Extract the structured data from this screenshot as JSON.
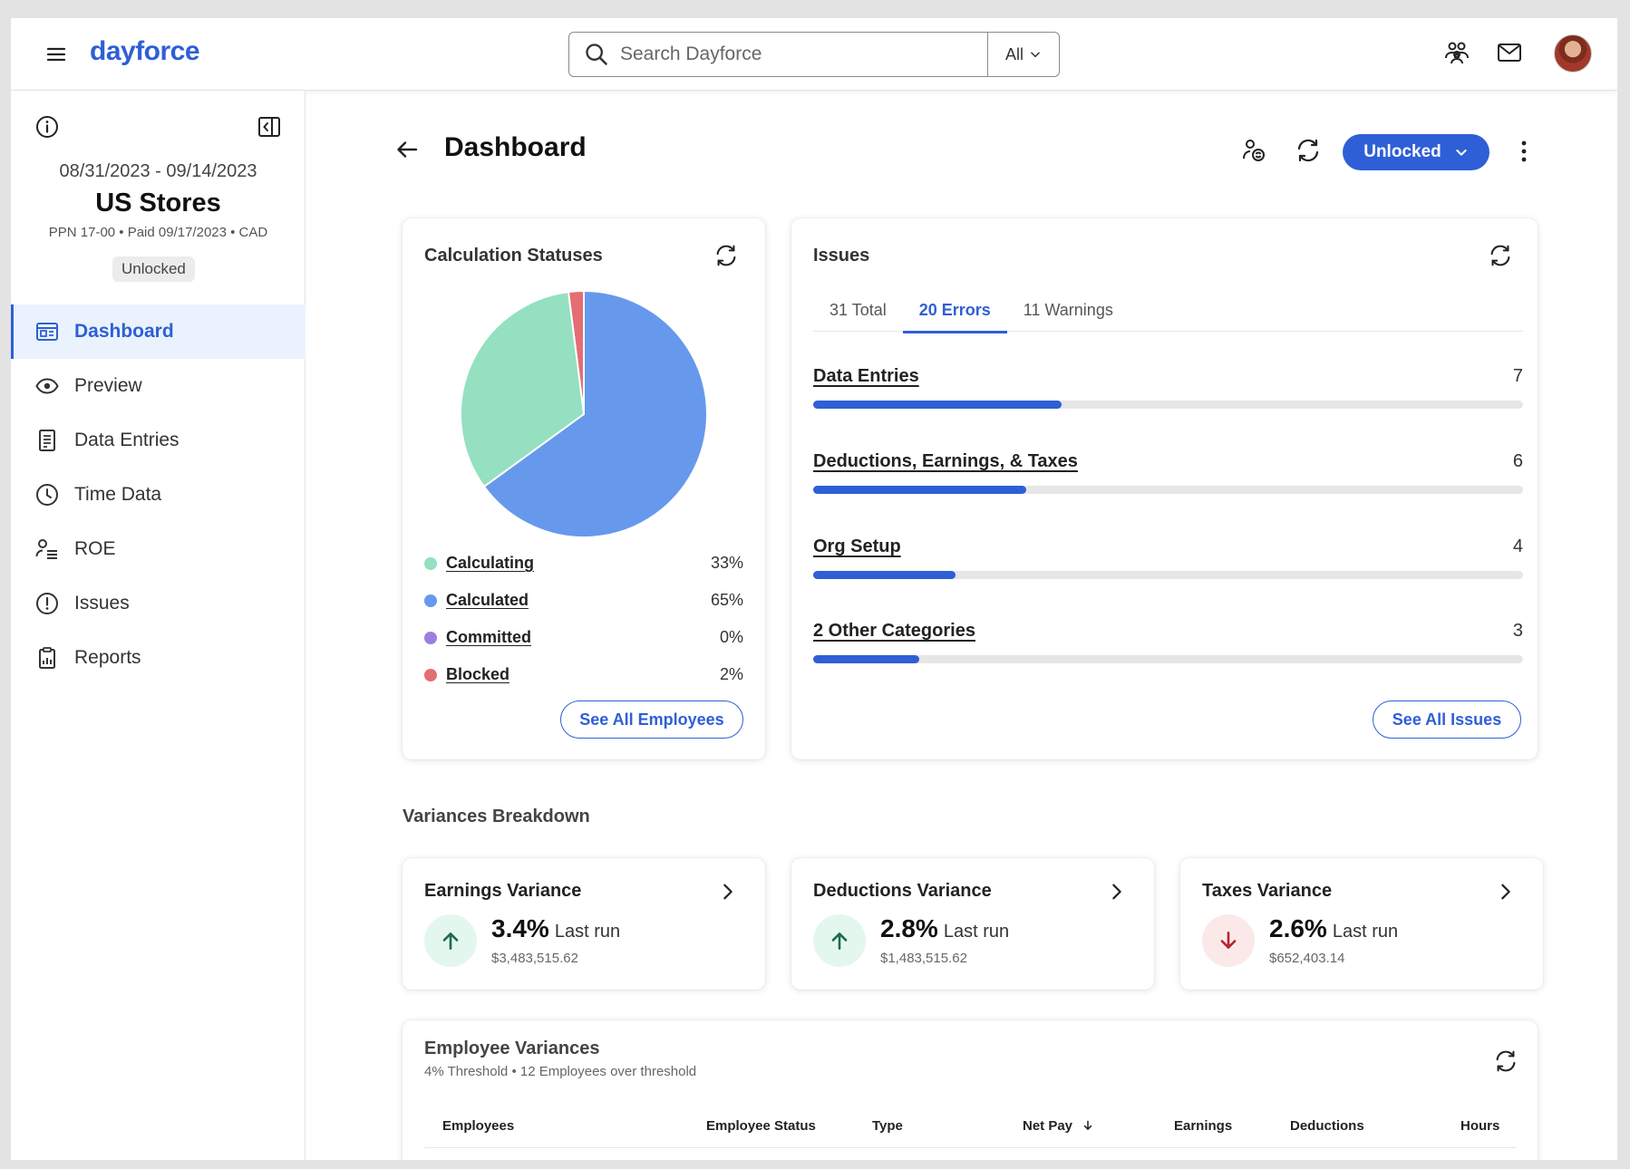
{
  "app": {
    "logo": "dayforce"
  },
  "search": {
    "placeholder": "Search Dayforce",
    "scope": "All"
  },
  "period": {
    "dates": "08/31/2023 - 09/14/2023",
    "store": "US Stores",
    "meta": "PPN 17-00 • Paid 09/17/2023 • CAD",
    "status": "Unlocked"
  },
  "nav": [
    {
      "label": "Dashboard",
      "icon": "dashboard-icon",
      "active": true
    },
    {
      "label": "Preview",
      "icon": "eye-icon"
    },
    {
      "label": "Data Entries",
      "icon": "document-icon"
    },
    {
      "label": "Time Data",
      "icon": "clock-icon"
    },
    {
      "label": "ROE",
      "icon": "person-list-icon"
    },
    {
      "label": "Issues",
      "icon": "alert-circle-icon"
    },
    {
      "label": "Reports",
      "icon": "report-icon"
    }
  ],
  "page": {
    "title": "Dashboard",
    "lock_button": "Unlocked"
  },
  "calc_statuses": {
    "title": "Calculation Statuses",
    "legend": [
      {
        "label": "Calculating",
        "value": "33%",
        "color": "#94e0c0"
      },
      {
        "label": "Calculated",
        "value": "65%",
        "color": "#6699ec"
      },
      {
        "label": "Committed",
        "value": "0%",
        "color": "#9b7fe0"
      },
      {
        "label": "Blocked",
        "value": "2%",
        "color": "#e56d74"
      }
    ],
    "button": "See All Employees"
  },
  "chart_data": {
    "type": "pie",
    "title": "Calculation Statuses",
    "categories": [
      "Calculating",
      "Calculated",
      "Committed",
      "Blocked"
    ],
    "values": [
      33,
      65,
      0,
      2
    ],
    "colors": [
      "#94e0c0",
      "#6699ec",
      "#9b7fe0",
      "#e56d74"
    ]
  },
  "issues": {
    "title": "Issues",
    "tabs": [
      {
        "label": "31 Total"
      },
      {
        "label": "20 Errors",
        "active": true
      },
      {
        "label": "11 Warnings"
      }
    ],
    "rows": [
      {
        "label": "Data Entries",
        "count": "7",
        "fraction": 0.35
      },
      {
        "label": "Deductions, Earnings, & Taxes",
        "count": "6",
        "fraction": 0.3
      },
      {
        "label": "Org Setup",
        "count": "4",
        "fraction": 0.2
      },
      {
        "label": "2 Other Categories",
        "count": "3",
        "fraction": 0.15
      }
    ],
    "button": "See All Issues"
  },
  "variances": {
    "title": "Variances Breakdown",
    "cards": [
      {
        "title": "Earnings Variance",
        "pct": "3.4%",
        "suffix": "Last run",
        "amount": "$3,483,515.62",
        "direction": "up"
      },
      {
        "title": "Deductions Variance",
        "pct": "2.8%",
        "suffix": "Last run",
        "amount": "$1,483,515.62",
        "direction": "up"
      },
      {
        "title": "Taxes Variance",
        "pct": "2.6%",
        "suffix": "Last run",
        "amount": "$652,403.14",
        "direction": "down"
      }
    ]
  },
  "employee_variances": {
    "title": "Employee Variances",
    "subtitle": "4% Threshold • 12 Employees over threshold",
    "columns": [
      "Employees",
      "Employee Status",
      "Type",
      "Net Pay",
      "Earnings",
      "Deductions",
      "Hours"
    ]
  },
  "colors": {
    "accent": "#2f5fd6",
    "up_bg": "#e3f7ee",
    "up_fg": "#1f6b4a",
    "down_bg": "#fbe9ea",
    "down_fg": "#b3262d"
  }
}
